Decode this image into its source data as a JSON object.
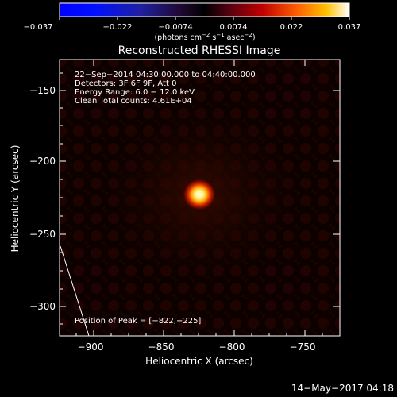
{
  "colorbar": {
    "ticks": [
      "−0.037",
      "−0.022",
      "−0.0074",
      "0.0074",
      "0.022",
      "0.037"
    ],
    "units": "(photons cm",
    "units_sup1": "−2",
    "units_mid": " s",
    "units_sup2": "−1",
    "units_end": " asec",
    "units_sup3": "−2",
    "units_close": ")"
  },
  "title": "Reconstructed RHESSI Image",
  "info": {
    "line1": "22−Sep−2014 04:30:00.000 to 04:40:00.000",
    "line2": "Detectors: 3F 6F 9F, Att 0",
    "line3": "Energy Range: 6.0 − 12.0 keV",
    "line4": "Clean     Total counts: 4.61E+04"
  },
  "peak_label": "Position of Peak = [−822,−225]",
  "axes": {
    "xlabel": "Heliocentric X (arcsec)",
    "ylabel": "Heliocentric Y (arcsec)",
    "xticks": [
      "−900",
      "−850",
      "−800",
      "−750"
    ],
    "yticks": [
      "−150",
      "−200",
      "−250",
      "−300"
    ]
  },
  "timestamp": "14−May−2017 04:18",
  "colors": {
    "background": "#000000",
    "source_core": "#ffffe0",
    "source_glow": "#ff4000"
  }
}
